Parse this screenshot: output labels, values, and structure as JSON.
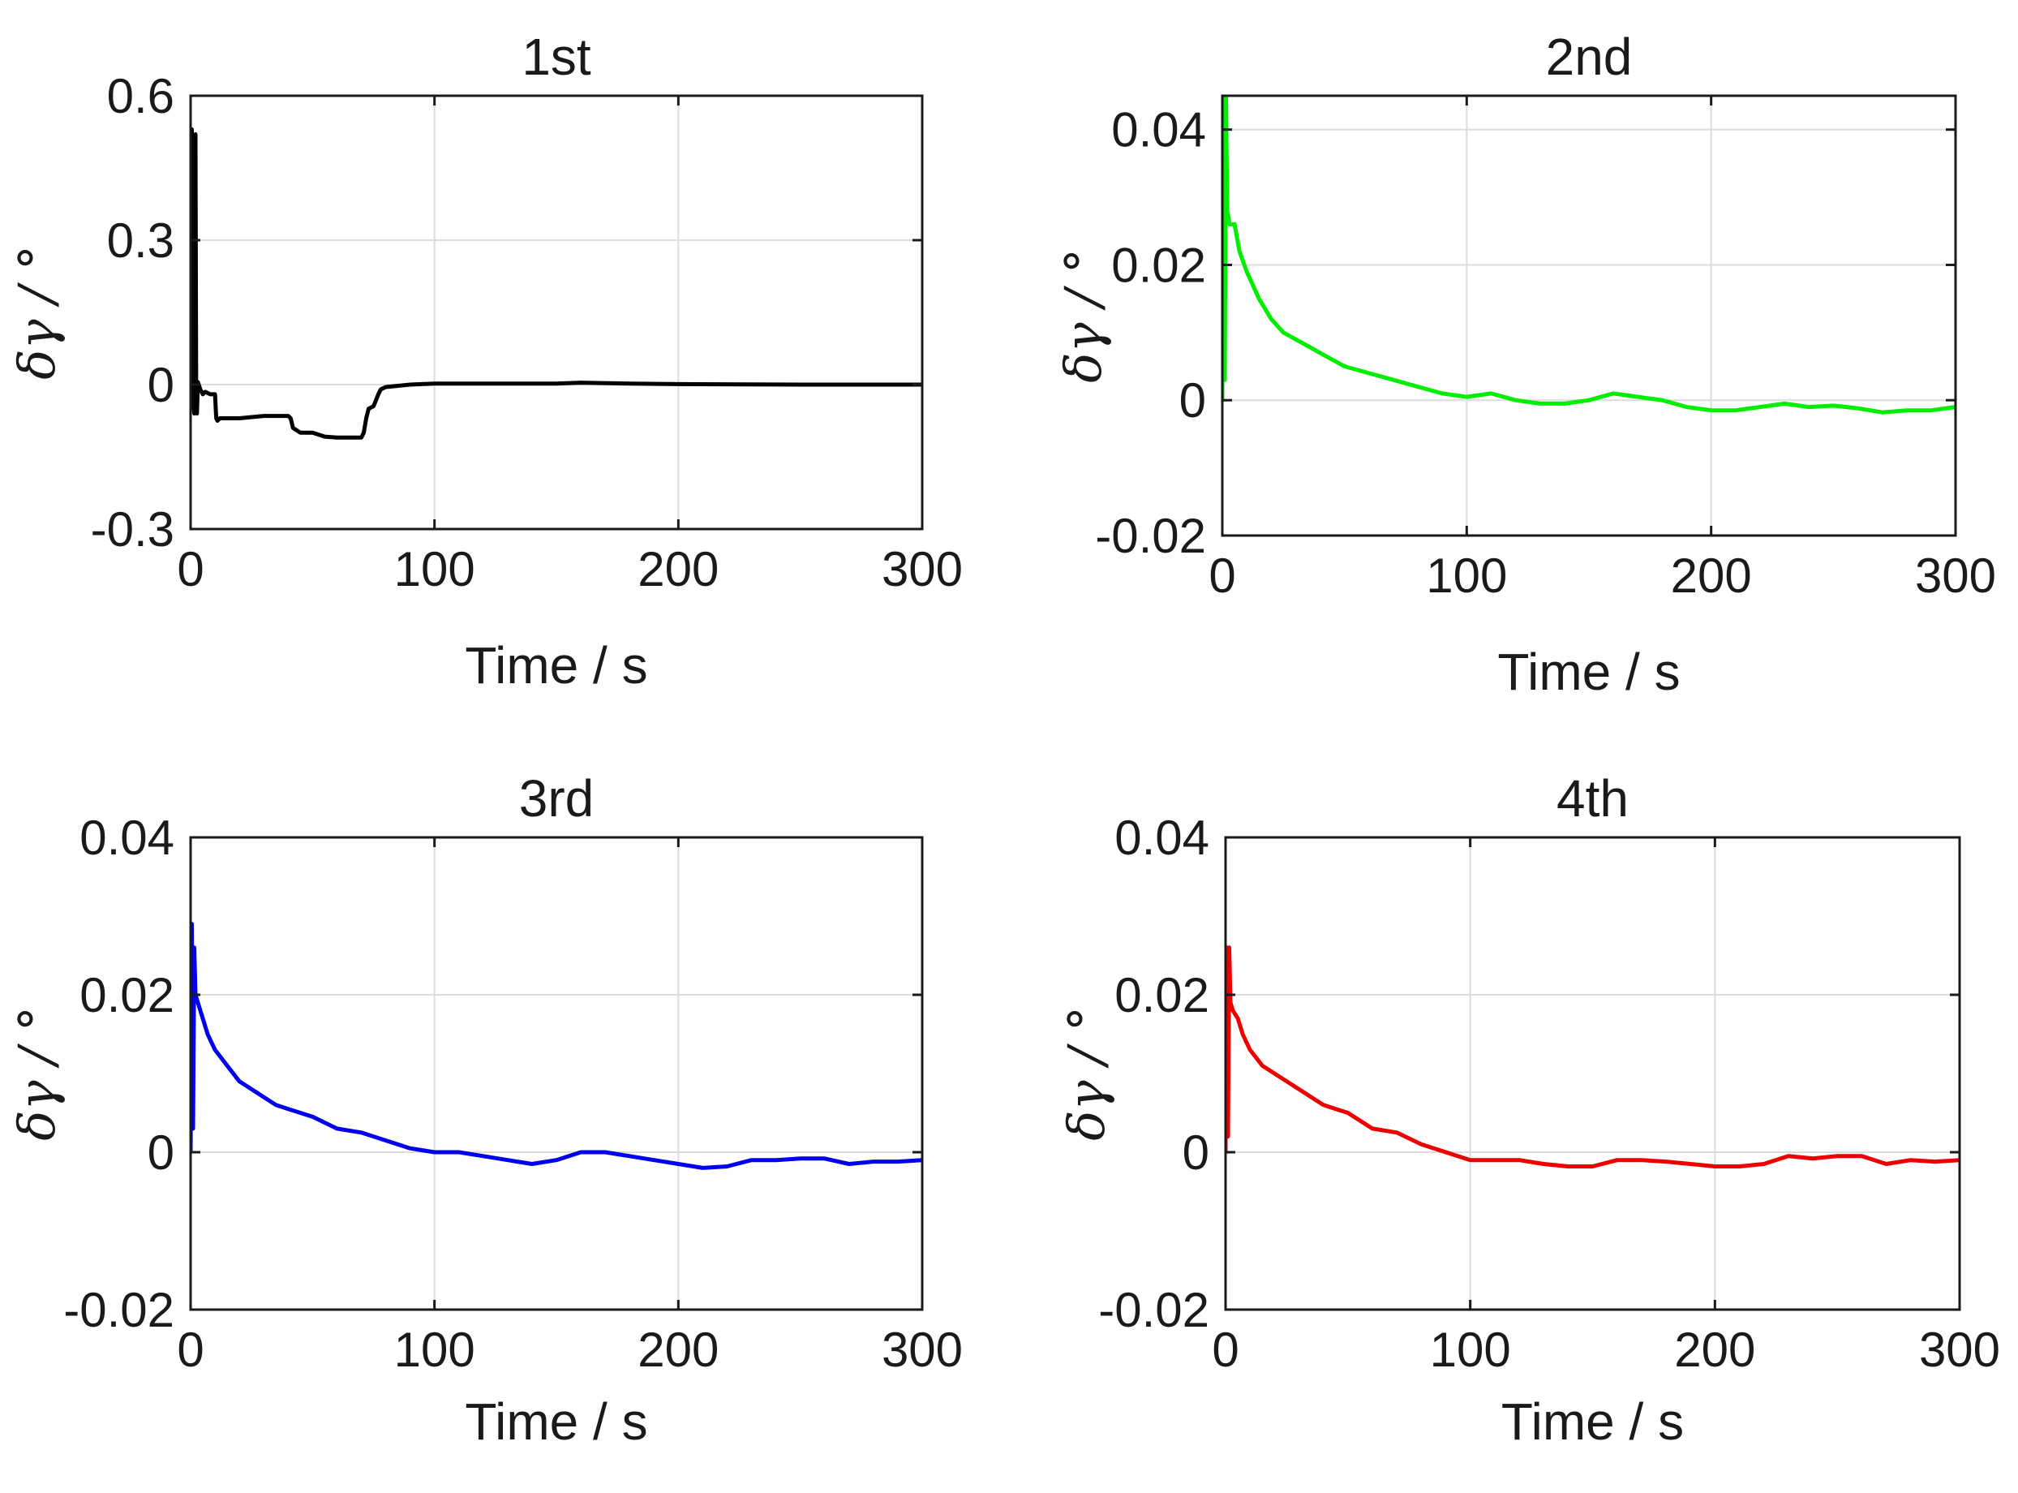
{
  "chart_data": [
    {
      "type": "line",
      "title": "1st",
      "xlabel": "Time / s",
      "ylabel": "δγ / °",
      "xlim": [
        0,
        300
      ],
      "ylim": [
        -0.3,
        0.6
      ],
      "xticks": [
        0,
        100,
        200,
        300
      ],
      "xtick_labels": [
        "0",
        "100",
        "200",
        "300"
      ],
      "yticks": [
        -0.3,
        0,
        0.3,
        0.6
      ],
      "ytick_labels": [
        "-0.3",
        "0",
        "0.3",
        "0.6"
      ],
      "grid": true,
      "color": "#000000",
      "series": [
        {
          "name": "1st",
          "x": [
            0,
            0.5,
            1,
            1.5,
            2,
            2.3,
            2.6,
            3,
            4,
            5,
            6,
            8,
            10,
            10.5,
            11,
            12,
            20,
            30,
            40,
            41,
            42,
            45,
            50,
            55,
            60,
            65,
            70,
            71,
            72,
            73,
            75,
            77,
            78,
            80,
            90,
            100,
            120,
            150,
            160,
            180,
            200,
            250,
            300
          ],
          "y": [
            0.0,
            0.53,
            -0.03,
            -0.06,
            0.52,
            -0.04,
            -0.06,
            0.005,
            -0.01,
            -0.02,
            -0.015,
            -0.02,
            -0.02,
            -0.07,
            -0.075,
            -0.07,
            -0.07,
            -0.065,
            -0.065,
            -0.07,
            -0.09,
            -0.1,
            -0.1,
            -0.108,
            -0.11,
            -0.11,
            -0.11,
            -0.1,
            -0.07,
            -0.05,
            -0.045,
            -0.02,
            -0.01,
            -0.005,
            0.0,
            0.002,
            0.002,
            0.002,
            0.004,
            0.002,
            0.001,
            0.0,
            0.0
          ]
        }
      ]
    },
    {
      "type": "line",
      "title": "2nd",
      "xlabel": "Time / s",
      "ylabel": "δγ / °",
      "xlim": [
        0,
        300
      ],
      "ylim": [
        -0.02,
        0.045
      ],
      "xticks": [
        0,
        100,
        200,
        300
      ],
      "xtick_labels": [
        "0",
        "100",
        "200",
        "300"
      ],
      "yticks": [
        -0.02,
        0,
        0.02,
        0.04
      ],
      "ytick_labels": [
        "-0.02",
        "0",
        "0.02",
        "0.04"
      ],
      "grid": true,
      "color": "#00ee00",
      "series": [
        {
          "name": "2nd",
          "x": [
            0,
            0.5,
            1,
            1.5,
            2,
            3,
            5,
            7,
            10,
            15,
            20,
            25,
            30,
            35,
            40,
            45,
            50,
            60,
            70,
            80,
            90,
            100,
            110,
            120,
            130,
            140,
            150,
            160,
            170,
            180,
            190,
            200,
            210,
            220,
            230,
            240,
            250,
            260,
            270,
            280,
            290,
            300
          ],
          "y": [
            0.0,
            0.045,
            0.003,
            0.045,
            0.028,
            0.026,
            0.026,
            0.022,
            0.019,
            0.015,
            0.012,
            0.01,
            0.009,
            0.008,
            0.007,
            0.006,
            0.005,
            0.004,
            0.003,
            0.002,
            0.001,
            0.0005,
            0.001,
            0.0,
            -0.0005,
            -0.0005,
            0.0,
            0.001,
            0.0005,
            0.0,
            -0.001,
            -0.0015,
            -0.0015,
            -0.001,
            -0.0005,
            -0.001,
            -0.0008,
            -0.0012,
            -0.0018,
            -0.0015,
            -0.0015,
            -0.001
          ]
        }
      ]
    },
    {
      "type": "line",
      "title": "3rd",
      "xlabel": "Time / s",
      "ylabel": "δγ / °",
      "xlim": [
        0,
        300
      ],
      "ylim": [
        -0.02,
        0.04
      ],
      "xticks": [
        0,
        100,
        200,
        300
      ],
      "xtick_labels": [
        "0",
        "100",
        "200",
        "300"
      ],
      "yticks": [
        -0.02,
        0,
        0.02,
        0.04
      ],
      "ytick_labels": [
        "-0.02",
        "0",
        "0.02",
        "0.04"
      ],
      "grid": true,
      "color": "#0000ee",
      "series": [
        {
          "name": "3rd",
          "x": [
            0,
            0.5,
            1,
            1.5,
            2,
            3,
            5,
            7,
            10,
            15,
            20,
            25,
            30,
            35,
            40,
            45,
            50,
            60,
            70,
            80,
            90,
            100,
            110,
            120,
            130,
            140,
            150,
            160,
            170,
            180,
            190,
            200,
            210,
            220,
            230,
            240,
            250,
            260,
            270,
            280,
            290,
            300
          ],
          "y": [
            0.0,
            0.029,
            0.003,
            0.026,
            0.02,
            0.019,
            0.017,
            0.015,
            0.013,
            0.011,
            0.009,
            0.008,
            0.007,
            0.006,
            0.0055,
            0.005,
            0.0045,
            0.003,
            0.0025,
            0.0015,
            0.0005,
            0.0,
            0.0,
            -0.0005,
            -0.001,
            -0.0015,
            -0.001,
            0.0,
            0.0,
            -0.0005,
            -0.001,
            -0.0015,
            -0.002,
            -0.0018,
            -0.001,
            -0.001,
            -0.0008,
            -0.0008,
            -0.0015,
            -0.0012,
            -0.0012,
            -0.001
          ]
        }
      ]
    },
    {
      "type": "line",
      "title": "4th",
      "xlabel": "Time / s",
      "ylabel": "δγ / °",
      "xlim": [
        0,
        300
      ],
      "ylim": [
        -0.02,
        0.04
      ],
      "xticks": [
        0,
        100,
        200,
        300
      ],
      "xtick_labels": [
        "0",
        "100",
        "200",
        "300"
      ],
      "yticks": [
        -0.02,
        0,
        0.02,
        0.04
      ],
      "ytick_labels": [
        "-0.02",
        "0",
        "0.02",
        "0.04"
      ],
      "grid": true,
      "color": "#ee0000",
      "series": [
        {
          "name": "4th",
          "x": [
            0,
            0.5,
            1,
            1.5,
            2,
            3,
            5,
            7,
            10,
            15,
            20,
            25,
            30,
            35,
            40,
            45,
            50,
            60,
            70,
            80,
            90,
            100,
            110,
            120,
            130,
            140,
            150,
            160,
            170,
            180,
            190,
            200,
            210,
            220,
            230,
            240,
            250,
            260,
            270,
            280,
            290,
            300
          ],
          "y": [
            0.0,
            0.026,
            0.002,
            0.026,
            0.019,
            0.018,
            0.017,
            0.015,
            0.013,
            0.011,
            0.01,
            0.009,
            0.008,
            0.007,
            0.006,
            0.0055,
            0.005,
            0.003,
            0.0025,
            0.001,
            0.0,
            -0.001,
            -0.001,
            -0.001,
            -0.0015,
            -0.0018,
            -0.0018,
            -0.001,
            -0.001,
            -0.0012,
            -0.0015,
            -0.0018,
            -0.0018,
            -0.0015,
            -0.0005,
            -0.0008,
            -0.0005,
            -0.0005,
            -0.0015,
            -0.001,
            -0.0012,
            -0.001
          ]
        }
      ]
    }
  ]
}
